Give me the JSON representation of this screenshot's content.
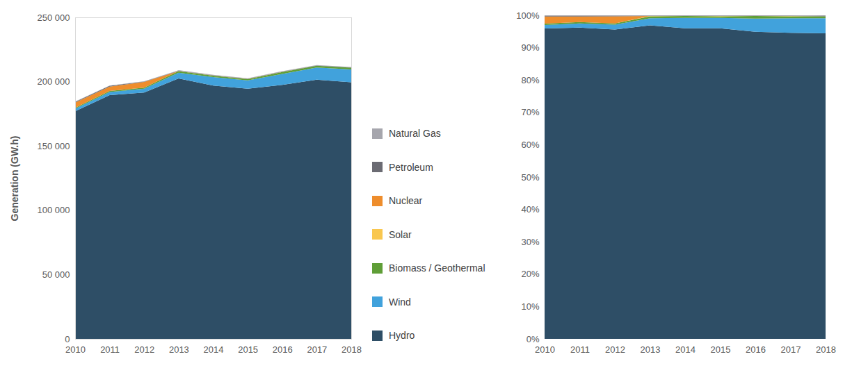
{
  "chart_data": [
    {
      "type": "area",
      "stacked": true,
      "grid": false,
      "y_label": "Generation (GW.h)",
      "x": [
        2010,
        2011,
        2012,
        2013,
        2014,
        2015,
        2016,
        2017,
        2018
      ],
      "xlim": [
        2010,
        2018
      ],
      "xticks": [
        2010,
        2011,
        2012,
        2013,
        2014,
        2015,
        2016,
        2017,
        2018
      ],
      "ylim": [
        0,
        250000
      ],
      "yticks": [
        0,
        {
          "value": 50000,
          "label": "50 000"
        },
        {
          "value": 100000,
          "label": "100 000"
        },
        {
          "value": 150000,
          "label": "150 000"
        },
        {
          "value": 200000,
          "label": "200 000"
        },
        {
          "value": 250000,
          "label": "250 000"
        }
      ],
      "series": [
        {
          "name": "Hydro",
          "color": "#2e4e66",
          "values": [
            177000,
            189500,
            191500,
            202500,
            197000,
            194500,
            197500,
            201500,
            199500
          ]
        },
        {
          "name": "Wind",
          "color": "#41a2dc",
          "values": [
            2000,
            2500,
            3000,
            4500,
            6500,
            6500,
            8500,
            9500,
            10000
          ]
        },
        {
          "name": "Biomass / Geothermal",
          "color": "#5f9e37",
          "values": [
            700,
            700,
            800,
            1200,
            1200,
            1000,
            1500,
            1300,
            1300
          ]
        },
        {
          "name": "Solar",
          "color": "#f9c74f",
          "values": [
            0,
            0,
            0,
            100,
            100,
            100,
            100,
            100,
            100
          ]
        },
        {
          "name": "Nuclear",
          "color": "#ee8d2c",
          "values": [
            4000,
            3500,
            4500,
            0,
            0,
            0,
            0,
            0,
            0
          ]
        },
        {
          "name": "Petroleum",
          "color": "#6b6b73",
          "values": [
            600,
            600,
            300,
            300,
            200,
            200,
            300,
            200,
            200
          ]
        },
        {
          "name": "Natural Gas",
          "color": "#a6a6ad",
          "values": [
            200,
            200,
            200,
            300,
            300,
            300,
            300,
            300,
            300
          ]
        }
      ]
    },
    {
      "type": "area",
      "stacked": true,
      "grid": false,
      "x": [
        2010,
        2011,
        2012,
        2013,
        2014,
        2015,
        2016,
        2017,
        2018
      ],
      "xlim": [
        2010,
        2018
      ],
      "xticks": [
        2010,
        2011,
        2012,
        2013,
        2014,
        2015,
        2016,
        2017,
        2018
      ],
      "ylim": [
        0,
        100
      ],
      "yticks": [
        {
          "value": 0,
          "label": "0%"
        },
        {
          "value": 10,
          "label": "10%"
        },
        {
          "value": 20,
          "label": "20%"
        },
        {
          "value": 30,
          "label": "30%"
        },
        {
          "value": 40,
          "label": "40%"
        },
        {
          "value": 50,
          "label": "50%"
        },
        {
          "value": 60,
          "label": "60%"
        },
        {
          "value": 70,
          "label": "70%"
        },
        {
          "value": 80,
          "label": "80%"
        },
        {
          "value": 90,
          "label": "90%"
        },
        {
          "value": 100,
          "label": "100%"
        }
      ],
      "series": [
        {
          "name": "Hydro",
          "color": "#2e4e66",
          "values": [
            95.9,
            96.2,
            95.6,
            96.9,
            96.0,
            96.0,
            94.9,
            94.6,
            94.4
          ]
        },
        {
          "name": "Wind",
          "color": "#41a2dc",
          "values": [
            1.1,
            1.3,
            1.5,
            2.2,
            3.2,
            3.2,
            4.1,
            4.5,
            4.7
          ]
        },
        {
          "name": "Biomass / Geothermal",
          "color": "#5f9e37",
          "values": [
            0.4,
            0.4,
            0.4,
            0.6,
            0.6,
            0.5,
            0.8,
            0.6,
            0.6
          ]
        },
        {
          "name": "Solar",
          "color": "#f9c74f",
          "values": [
            0,
            0,
            0,
            0.1,
            0,
            0.1,
            0,
            0.1,
            0
          ]
        },
        {
          "name": "Nuclear",
          "color": "#ee8d2c",
          "values": [
            2.2,
            1.7,
            2.2,
            0,
            0,
            0,
            0,
            0,
            0
          ]
        },
        {
          "name": "Petroleum",
          "color": "#6b6b73",
          "values": [
            0.3,
            0.3,
            0.2,
            0.1,
            0.1,
            0.1,
            0.1,
            0.1,
            0.1
          ]
        },
        {
          "name": "Natural Gas",
          "color": "#a6a6ad",
          "values": [
            0.1,
            0.1,
            0.1,
            0.1,
            0.1,
            0.1,
            0.1,
            0.1,
            0.2
          ]
        }
      ]
    }
  ]
}
